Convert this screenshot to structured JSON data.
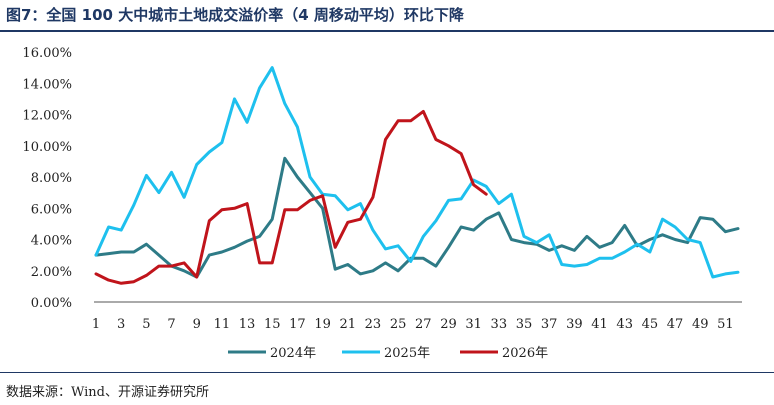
{
  "header": {
    "title": "图7：全国 100 大中城市土地成交溢价率（4 周移动平均）环比下降"
  },
  "footer": {
    "source": "数据来源：Wind、开源证券研究所"
  },
  "chart_data": {
    "type": "line",
    "title": "图7：全国 100 大中城市土地成交溢价率（4 周移动平均）环比下降",
    "xlabel": "",
    "ylabel": "",
    "ylim": [
      0,
      16
    ],
    "xlim": [
      1,
      52
    ],
    "x_ticks": [
      "1",
      "3",
      "5",
      "7",
      "9",
      "11",
      "13",
      "15",
      "17",
      "19",
      "21",
      "23",
      "25",
      "27",
      "29",
      "31",
      "33",
      "35",
      "37",
      "39",
      "41",
      "43",
      "45",
      "47",
      "49",
      "51"
    ],
    "y_ticks": [
      "0.00%",
      "2.00%",
      "4.00%",
      "6.00%",
      "8.00%",
      "10.00%",
      "12.00%",
      "14.00%",
      "16.00%"
    ],
    "grid": false,
    "legend_position": "bottom",
    "series": [
      {
        "name": "2024年",
        "color": "#2e7b87",
        "x": [
          1,
          2,
          3,
          4,
          5,
          6,
          7,
          8,
          9,
          10,
          11,
          12,
          13,
          14,
          15,
          16,
          17,
          18,
          19,
          20,
          21,
          22,
          23,
          24,
          25,
          26,
          27,
          28,
          29,
          30,
          31,
          32,
          33,
          34,
          35,
          36,
          37,
          38,
          39,
          40,
          41,
          42,
          43,
          44,
          45,
          46,
          47,
          48,
          49,
          50,
          51,
          52
        ],
        "values": [
          3.0,
          3.1,
          3.2,
          3.2,
          3.7,
          3.0,
          2.3,
          2.0,
          1.6,
          3.0,
          3.2,
          3.5,
          3.9,
          4.2,
          5.3,
          9.2,
          8.0,
          7.0,
          6.0,
          2.1,
          2.4,
          1.8,
          2.0,
          2.5,
          2.0,
          2.8,
          2.8,
          2.3,
          3.5,
          4.8,
          4.6,
          5.3,
          5.7,
          4.0,
          3.8,
          3.7,
          3.3,
          3.6,
          3.3,
          4.2,
          3.5,
          3.8,
          4.9,
          3.6,
          4.0,
          4.3,
          4.0,
          3.8,
          5.4,
          5.3,
          4.5,
          4.7
        ]
      },
      {
        "name": "2025年",
        "color": "#1ec0ee",
        "x": [
          1,
          2,
          3,
          4,
          5,
          6,
          7,
          8,
          9,
          10,
          11,
          12,
          13,
          14,
          15,
          16,
          17,
          18,
          19,
          20,
          21,
          22,
          23,
          24,
          25,
          26,
          27,
          28,
          29,
          30,
          31,
          32,
          33,
          34,
          35,
          36,
          37,
          38,
          39,
          40,
          41,
          42,
          43,
          44,
          45,
          46,
          47,
          48,
          49,
          50,
          51,
          52
        ],
        "values": [
          3.0,
          4.8,
          4.6,
          6.2,
          8.1,
          7.0,
          8.3,
          6.7,
          8.8,
          9.6,
          10.2,
          13.0,
          11.5,
          13.7,
          15.0,
          12.7,
          11.2,
          8.0,
          6.9,
          6.8,
          5.9,
          6.3,
          4.6,
          3.4,
          3.6,
          2.6,
          4.2,
          5.2,
          6.5,
          6.6,
          7.8,
          7.4,
          6.3,
          6.9,
          4.2,
          3.8,
          4.3,
          2.4,
          2.3,
          2.4,
          2.8,
          2.8,
          3.2,
          3.7,
          3.2,
          5.3,
          4.8,
          4.0,
          3.8,
          1.6,
          1.8,
          1.9
        ]
      },
      {
        "name": "2026年",
        "color": "#c0141b",
        "x": [
          1,
          2,
          3,
          4,
          5,
          6,
          7,
          8,
          9,
          10,
          11,
          12,
          13,
          14,
          15,
          16,
          17,
          18,
          19,
          20,
          21,
          22,
          23,
          24,
          25,
          26,
          27,
          28,
          29,
          30,
          31,
          32
        ],
        "values": [
          1.8,
          1.4,
          1.2,
          1.3,
          1.7,
          2.3,
          2.3,
          2.5,
          1.6,
          5.2,
          5.9,
          6.0,
          6.3,
          2.5,
          2.5,
          5.9,
          5.9,
          6.5,
          6.8,
          3.5,
          5.1,
          5.3,
          6.7,
          10.4,
          11.6,
          11.6,
          12.2,
          10.4,
          10.0,
          9.5,
          7.5,
          6.9
        ]
      }
    ]
  }
}
